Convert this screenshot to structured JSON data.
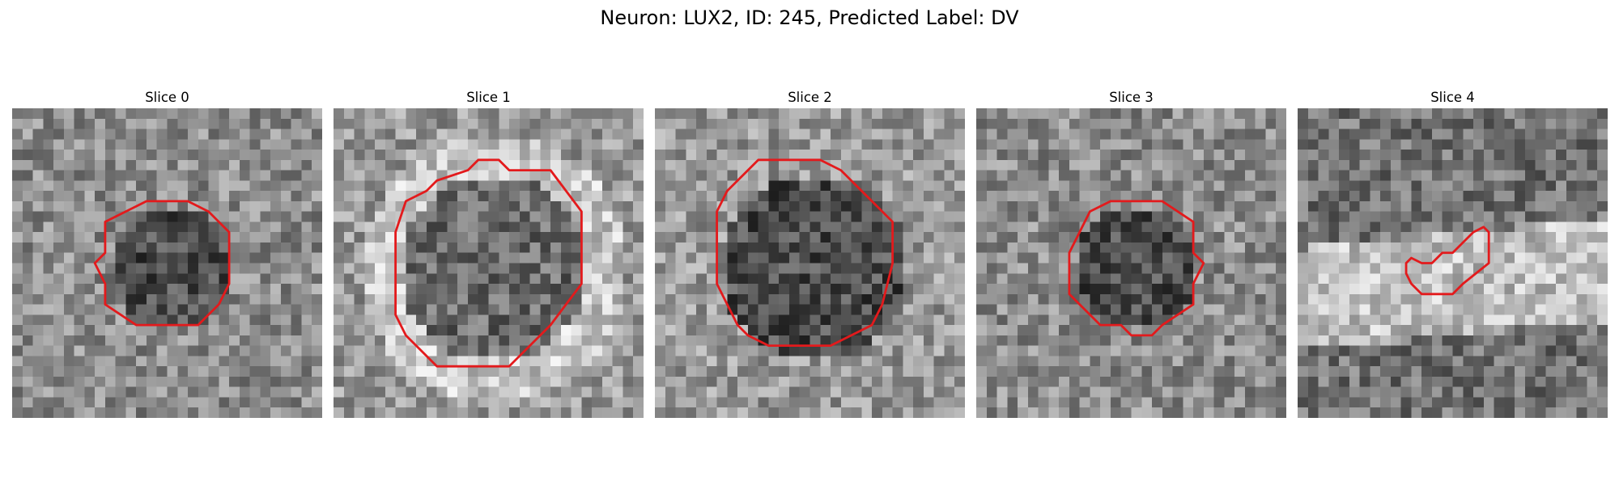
{
  "title": "Neuron: LUX2, ID: 245, Predicted Label: DV",
  "colors": {
    "contour": "#e31a1c",
    "background": "#ffffff"
  },
  "grid_size": 30,
  "panels": [
    {
      "title": "Slice 0",
      "seed": 11,
      "pattern": "dark-center",
      "contour": [
        [
          13,
          9
        ],
        [
          17,
          9
        ],
        [
          19,
          10
        ],
        [
          21,
          12
        ],
        [
          21,
          17
        ],
        [
          20,
          19
        ],
        [
          18,
          21
        ],
        [
          12,
          21
        ],
        [
          9,
          19
        ],
        [
          9,
          17
        ],
        [
          8,
          15
        ],
        [
          9,
          14
        ],
        [
          9,
          11
        ],
        [
          11,
          10
        ]
      ]
    },
    {
      "title": "Slice 1",
      "seed": 27,
      "pattern": "bright-ring",
      "contour": [
        [
          14,
          5
        ],
        [
          16,
          5
        ],
        [
          17,
          6
        ],
        [
          21,
          6
        ],
        [
          24,
          10
        ],
        [
          24,
          17
        ],
        [
          21,
          21
        ],
        [
          19,
          23
        ],
        [
          17,
          25
        ],
        [
          10,
          25
        ],
        [
          7,
          22
        ],
        [
          6,
          20
        ],
        [
          6,
          12
        ],
        [
          7,
          9
        ],
        [
          9,
          8
        ],
        [
          10,
          7
        ],
        [
          13,
          6
        ]
      ]
    },
    {
      "title": "Slice 2",
      "seed": 43,
      "pattern": "dark-body",
      "contour": [
        [
          10,
          5
        ],
        [
          16,
          5
        ],
        [
          18,
          6
        ],
        [
          21,
          9
        ],
        [
          23,
          11
        ],
        [
          23,
          15
        ],
        [
          22,
          19
        ],
        [
          21,
          21
        ],
        [
          19,
          22
        ],
        [
          17,
          23
        ],
        [
          11,
          23
        ],
        [
          9,
          22
        ],
        [
          8,
          21
        ],
        [
          7,
          19
        ],
        [
          6,
          17
        ],
        [
          6,
          10
        ],
        [
          7,
          8
        ],
        [
          8,
          7
        ]
      ]
    },
    {
      "title": "Slice 3",
      "seed": 59,
      "pattern": "dark-center",
      "contour": [
        [
          13,
          9
        ],
        [
          18,
          9
        ],
        [
          21,
          11
        ],
        [
          21,
          14
        ],
        [
          22,
          15
        ],
        [
          21,
          17
        ],
        [
          21,
          19
        ],
        [
          18,
          21
        ],
        [
          17,
          22
        ],
        [
          15,
          22
        ],
        [
          14,
          21
        ],
        [
          12,
          21
        ],
        [
          9,
          18
        ],
        [
          9,
          14
        ],
        [
          11,
          10
        ]
      ]
    },
    {
      "title": "Slice 4",
      "seed": 73,
      "pattern": "bright-band",
      "contour": [
        [
          18,
          11.5
        ],
        [
          18.5,
          12
        ],
        [
          18.5,
          15
        ],
        [
          16,
          17
        ],
        [
          15,
          18
        ],
        [
          12,
          18
        ],
        [
          11,
          17
        ],
        [
          10.5,
          16
        ],
        [
          10.5,
          15
        ],
        [
          11,
          14.5
        ],
        [
          12,
          15
        ],
        [
          13,
          15
        ],
        [
          14,
          14
        ],
        [
          15,
          14
        ],
        [
          16,
          13
        ],
        [
          17,
          12
        ]
      ]
    }
  ]
}
